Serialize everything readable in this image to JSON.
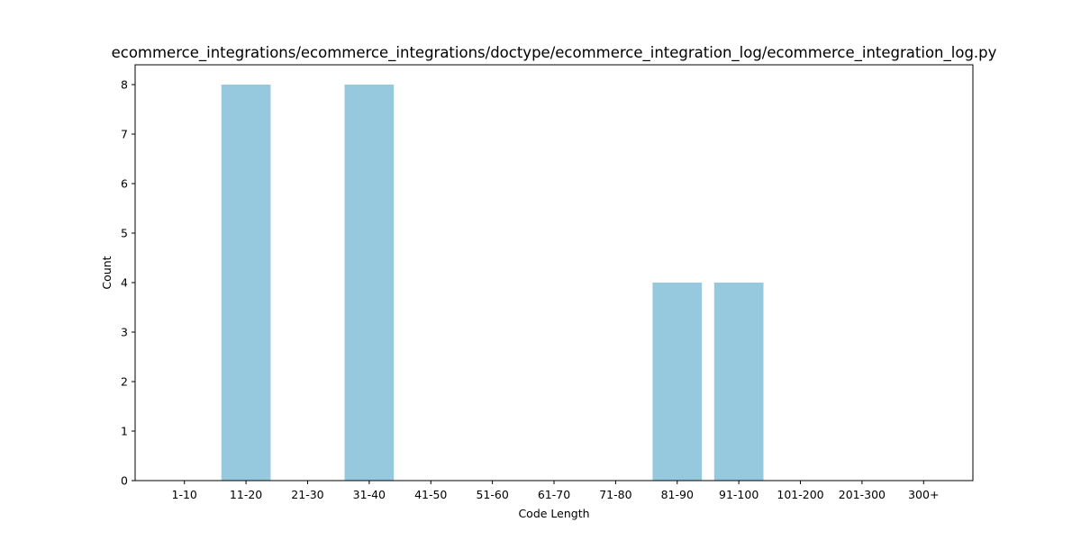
{
  "chart_data": {
    "type": "bar",
    "title": "ecommerce_integrations/ecommerce_integrations/doctype/ecommerce_integration_log/ecommerce_integration_log.py",
    "xlabel": "Code Length",
    "ylabel": "Count",
    "categories": [
      "1-10",
      "11-20",
      "21-30",
      "31-40",
      "41-50",
      "51-60",
      "61-70",
      "71-80",
      "81-90",
      "91-100",
      "101-200",
      "201-300",
      "300+"
    ],
    "values": [
      0,
      8,
      0,
      8,
      0,
      0,
      0,
      0,
      4,
      4,
      0,
      0,
      0
    ],
    "yticks": [
      0,
      1,
      2,
      3,
      4,
      5,
      6,
      7,
      8
    ],
    "ylim": [
      0,
      8.4
    ],
    "grid": false,
    "legend": "none",
    "bar_color": "#96c9de"
  }
}
